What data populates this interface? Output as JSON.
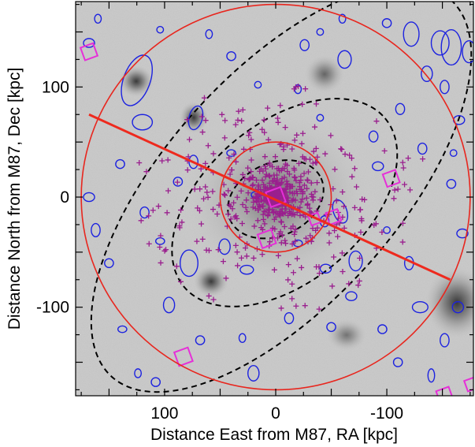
{
  "chart_data": {
    "type": "scatter",
    "title": "",
    "xlabel": "Distance East from M87, RA [kpc]",
    "ylabel": "Distance North from M87, Dec [kpc]",
    "xlim": [
      180,
      -178
    ],
    "ylim": [
      -180,
      178
    ],
    "x_ticks": [
      {
        "value": 100,
        "label": "100"
      },
      {
        "value": 0,
        "label": "0"
      },
      {
        "value": -100,
        "label": "-100"
      }
    ],
    "y_ticks": [
      {
        "value": 100,
        "label": "100"
      },
      {
        "value": 0,
        "label": "0"
      },
      {
        "value": -100,
        "label": "-100"
      }
    ],
    "background": "deep optical image of the Virgo cluster core (grayscale)",
    "colors": {
      "frame": "#000000",
      "circle": "#e8261e",
      "major_axis": "#ee2a1e",
      "isophote": "#000000",
      "galaxy_ellipse": "#1c22e0",
      "gc_marker": "#9a1e8e",
      "magenta_box": "#e62fd8"
    },
    "circles": [
      {
        "name": "inner-circle",
        "center": [
          0,
          0
        ],
        "radius_kpc": 50
      },
      {
        "name": "outer-circle",
        "center": [
          0,
          0
        ],
        "radius_kpc": 175
      }
    ],
    "major_axis_line": {
      "from": [
        168,
        75
      ],
      "to": [
        -157,
        -75
      ]
    },
    "isophotes": [
      {
        "name": "isophote-inner",
        "center": [
          0,
          -2
        ],
        "a": 45,
        "b": 33,
        "pa_deg": -25
      },
      {
        "name": "isophote-middle",
        "center": [
          -8,
          -5
        ],
        "a": 118,
        "b": 72,
        "pa_deg": -40
      },
      {
        "name": "isophote-outer",
        "center": [
          -5,
          8
        ],
        "a": 228,
        "b": 105,
        "pa_deg": -48
      }
    ],
    "galaxy_ellipses": [
      {
        "x": 125,
        "y": 106,
        "a": 12,
        "b": 24,
        "pa_deg": 20
      },
      {
        "x": 120,
        "y": 68,
        "a": 9,
        "b": 7,
        "pa_deg": 0
      },
      {
        "x": 72,
        "y": 72,
        "a": 6,
        "b": 11,
        "pa_deg": 15
      },
      {
        "x": 74,
        "y": 32,
        "a": 4,
        "b": 6,
        "pa_deg": 0
      },
      {
        "x": 78,
        "y": -60,
        "a": 8,
        "b": 12,
        "pa_deg": 0
      },
      {
        "x": 96,
        "y": -98,
        "a": 5,
        "b": 7,
        "pa_deg": 0
      },
      {
        "x": 46,
        "y": -45,
        "a": 5,
        "b": 7,
        "pa_deg": 0
      },
      {
        "x": 26,
        "y": -66,
        "a": 6,
        "b": 4,
        "pa_deg": 0
      },
      {
        "x": 18,
        "y": 2,
        "a": 4,
        "b": 3,
        "pa_deg": 0
      },
      {
        "x": -58,
        "y": -13,
        "a": 6,
        "b": 11,
        "pa_deg": -20
      },
      {
        "x": -44,
        "y": -22,
        "a": 4,
        "b": 5,
        "pa_deg": 0
      },
      {
        "x": -72,
        "y": -58,
        "a": 6,
        "b": 9,
        "pa_deg": 0
      },
      {
        "x": -45,
        "y": -65,
        "a": 5,
        "b": 4,
        "pa_deg": 0
      },
      {
        "x": -68,
        "y": -90,
        "a": 5,
        "b": 4,
        "pa_deg": 0
      },
      {
        "x": -120,
        "y": -60,
        "a": 4,
        "b": 6,
        "pa_deg": 0
      },
      {
        "x": -130,
        "y": -100,
        "a": 7,
        "b": 5,
        "pa_deg": 0
      },
      {
        "x": -122,
        "y": 148,
        "a": 7,
        "b": 11,
        "pa_deg": 0
      },
      {
        "x": -148,
        "y": 140,
        "a": 8,
        "b": 11,
        "pa_deg": 0
      },
      {
        "x": -158,
        "y": 136,
        "a": 9,
        "b": 16,
        "pa_deg": 0
      },
      {
        "x": -174,
        "y": 132,
        "a": 6,
        "b": 10,
        "pa_deg": 0
      },
      {
        "x": -136,
        "y": 112,
        "a": 5,
        "b": 7,
        "pa_deg": 0
      },
      {
        "x": -152,
        "y": 100,
        "a": 4,
        "b": 6,
        "pa_deg": 0
      },
      {
        "x": -165,
        "y": 70,
        "a": 5,
        "b": 4,
        "pa_deg": 0
      },
      {
        "x": -62,
        "y": 125,
        "a": 6,
        "b": 8,
        "pa_deg": 0
      },
      {
        "x": -88,
        "y": 55,
        "a": 4,
        "b": 5,
        "pa_deg": 0
      },
      {
        "x": -92,
        "y": 28,
        "a": 5,
        "b": 4,
        "pa_deg": 0
      },
      {
        "x": -132,
        "y": 44,
        "a": 4,
        "b": 5,
        "pa_deg": 0
      },
      {
        "x": -158,
        "y": 12,
        "a": 4,
        "b": 4,
        "pa_deg": 0
      },
      {
        "x": -168,
        "y": -33,
        "a": 5,
        "b": 4,
        "pa_deg": 0
      },
      {
        "x": -164,
        "y": -100,
        "a": 5,
        "b": 5,
        "pa_deg": 0
      },
      {
        "x": -152,
        "y": -130,
        "a": 4,
        "b": 6,
        "pa_deg": 0
      },
      {
        "x": -140,
        "y": -162,
        "a": 3,
        "b": 6,
        "pa_deg": 0
      },
      {
        "x": -110,
        "y": -150,
        "a": 4,
        "b": 4,
        "pa_deg": 0
      },
      {
        "x": -50,
        "y": -118,
        "a": 4,
        "b": 4,
        "pa_deg": 0
      },
      {
        "x": -12,
        "y": -110,
        "a": 4,
        "b": 5,
        "pa_deg": 0
      },
      {
        "x": 20,
        "y": -160,
        "a": 5,
        "b": 7,
        "pa_deg": 0
      },
      {
        "x": 30,
        "y": -128,
        "a": 3,
        "b": 4,
        "pa_deg": 0
      },
      {
        "x": 68,
        "y": -130,
        "a": 4,
        "b": 4,
        "pa_deg": 0
      },
      {
        "x": 108,
        "y": -168,
        "a": 4,
        "b": 4,
        "pa_deg": 0
      },
      {
        "x": 124,
        "y": -160,
        "a": 3,
        "b": 4,
        "pa_deg": 0
      },
      {
        "x": 138,
        "y": -120,
        "a": 4,
        "b": 3,
        "pa_deg": 0
      },
      {
        "x": 150,
        "y": -60,
        "a": 4,
        "b": 4,
        "pa_deg": 0
      },
      {
        "x": 162,
        "y": -30,
        "a": 4,
        "b": 6,
        "pa_deg": 0
      },
      {
        "x": 168,
        "y": 0,
        "a": 5,
        "b": 4,
        "pa_deg": 0
      },
      {
        "x": 140,
        "y": 30,
        "a": 4,
        "b": 4,
        "pa_deg": 0
      },
      {
        "x": 168,
        "y": 140,
        "a": 5,
        "b": 4,
        "pa_deg": 0
      },
      {
        "x": 160,
        "y": 162,
        "a": 3,
        "b": 4,
        "pa_deg": 0
      },
      {
        "x": 104,
        "y": 152,
        "a": 3,
        "b": 3,
        "pa_deg": 0
      },
      {
        "x": 60,
        "y": 148,
        "a": 3,
        "b": 4,
        "pa_deg": 0
      },
      {
        "x": 40,
        "y": 128,
        "a": 4,
        "b": 4,
        "pa_deg": 0
      },
      {
        "x": 16,
        "y": 102,
        "a": 3,
        "b": 3,
        "pa_deg": 0
      },
      {
        "x": -26,
        "y": 138,
        "a": 4,
        "b": 5,
        "pa_deg": 0
      },
      {
        "x": -40,
        "y": 150,
        "a": 3,
        "b": 3,
        "pa_deg": 0
      },
      {
        "x": -60,
        "y": 162,
        "a": 3,
        "b": 4,
        "pa_deg": 0
      },
      {
        "x": -100,
        "y": 158,
        "a": 4,
        "b": 4,
        "pa_deg": 0
      },
      {
        "x": -112,
        "y": 80,
        "a": 4,
        "b": 5,
        "pa_deg": 0
      },
      {
        "x": -40,
        "y": 72,
        "a": 3,
        "b": 3,
        "pa_deg": 0
      },
      {
        "x": -20,
        "y": 98,
        "a": 3,
        "b": 4,
        "pa_deg": 0
      },
      {
        "x": 40,
        "y": 40,
        "a": 4,
        "b": 3,
        "pa_deg": 0
      },
      {
        "x": 88,
        "y": 14,
        "a": 4,
        "b": 4,
        "pa_deg": 0
      },
      {
        "x": 118,
        "y": -14,
        "a": 4,
        "b": 5,
        "pa_deg": 0
      },
      {
        "x": 104,
        "y": -40,
        "a": 4,
        "b": 3,
        "pa_deg": 0
      },
      {
        "x": -20,
        "y": -42,
        "a": 4,
        "b": 3,
        "pa_deg": 0
      },
      {
        "x": -100,
        "y": -30,
        "a": 3,
        "b": 3,
        "pa_deg": 0
      },
      {
        "x": -96,
        "y": -120,
        "a": 4,
        "b": 4,
        "pa_deg": 0
      },
      {
        "x": -160,
        "y": 40,
        "a": 3,
        "b": 3,
        "pa_deg": 0
      }
    ],
    "gc_cluster": {
      "center": [
        0,
        0
      ],
      "core_count": 170,
      "disk_count": 220,
      "halo_count": 130
    },
    "magenta_boxes": [
      {
        "x": 168,
        "y": 132,
        "size_kpc": 12
      },
      {
        "x": 83,
        "y": -145,
        "size_kpc": 13
      },
      {
        "x": -104,
        "y": 17,
        "size_kpc": 12
      },
      {
        "x": -52,
        "y": -18,
        "size_kpc": 11
      },
      {
        "x": 8,
        "y": -38,
        "size_kpc": 13
      },
      {
        "x": -35,
        "y": -20,
        "size_kpc": 9
      },
      {
        "x": 0,
        "y": 0,
        "size_kpc": 14
      },
      {
        "x": -152,
        "y": -180,
        "size_kpc": 12
      },
      {
        "x": -176,
        "y": -170,
        "size_kpc": 10
      }
    ]
  }
}
